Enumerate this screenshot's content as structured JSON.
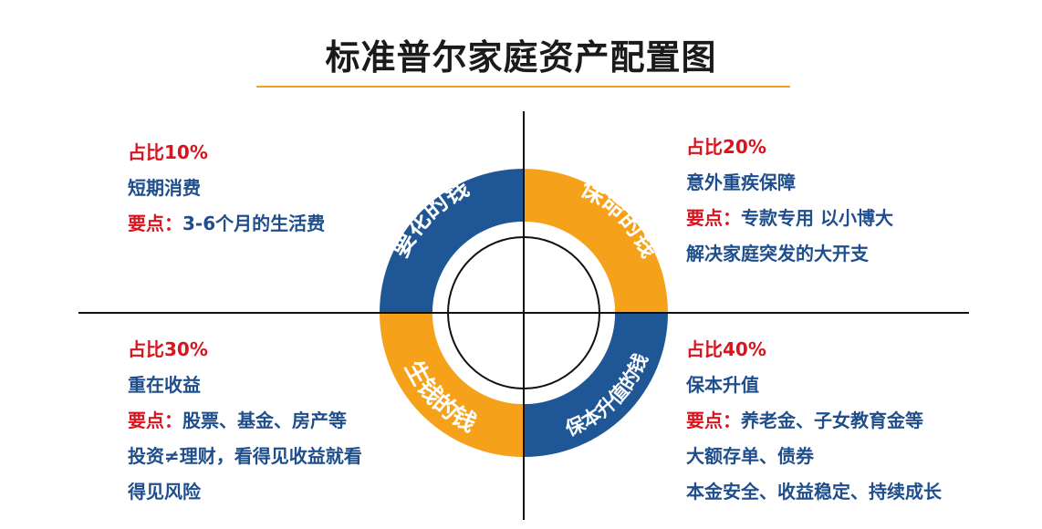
{
  "title": "标准普尔家庭资产配置图",
  "colors": {
    "blue": "#1f5796",
    "orange": "#f5a21a",
    "red_text": "#d9141e",
    "blue_text": "#1f4e8c"
  },
  "segments": {
    "top_left": "要花的钱",
    "top_right": "保命的钱",
    "bottom_left": "生钱的钱",
    "bottom_right": "保本升值的钱"
  },
  "quadrants": {
    "top_left": {
      "ratio": "占比10%",
      "name": "短期消费",
      "key_label": "要点：",
      "key_text": "3-6个月的生活费",
      "extra": []
    },
    "top_right": {
      "ratio": "占比20%",
      "name": "意外重疾保障",
      "key_label": "要点：",
      "key_text": "专款专用 以小博大",
      "extra": [
        "解决家庭突发的大开支"
      ]
    },
    "bottom_left": {
      "ratio": "占比30%",
      "name": "重在收益",
      "key_label": "要点：",
      "key_text": "股票、基金、房产等",
      "extra": [
        "投资≠理财，看得见收益就看",
        "得见风险"
      ]
    },
    "bottom_right": {
      "ratio": "占比40%",
      "name": "保本升值",
      "key_label": "要点：",
      "key_text": "养老金、子女教育金等",
      "extra": [
        "大额存单、债券",
        "本金安全、收益稳定、持续成长"
      ]
    }
  }
}
